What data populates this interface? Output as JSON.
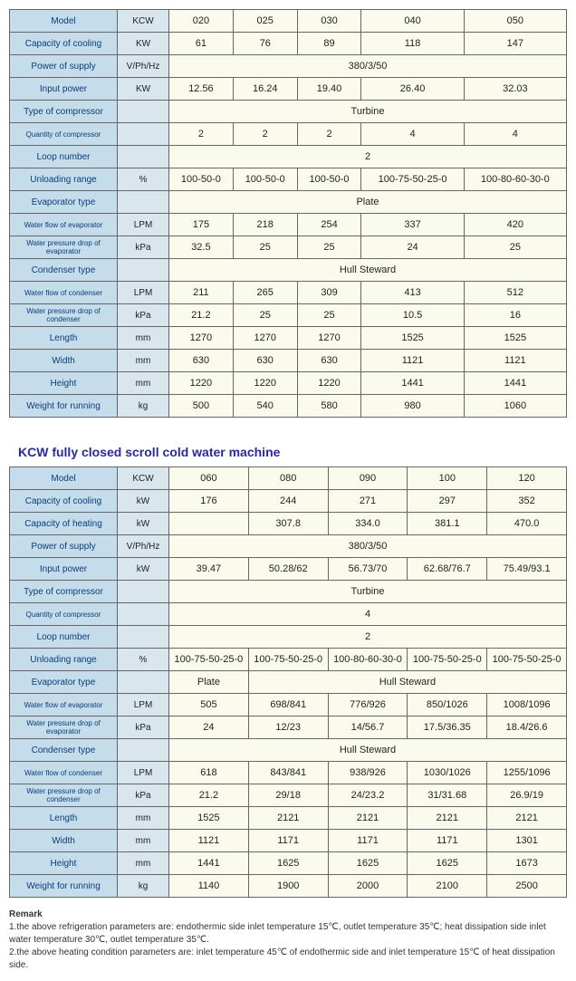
{
  "table1": {
    "rows": [
      {
        "label": "Model",
        "unit": "KCW",
        "cells": [
          "020",
          "025",
          "030",
          "040",
          "050"
        ]
      },
      {
        "label": "Capacity of cooling",
        "unit": "KW",
        "cells": [
          "61",
          "76",
          "89",
          "118",
          "147"
        ]
      },
      {
        "label": "Power of supply",
        "unit": "V/Ph/Hz",
        "span": "380/3/50"
      },
      {
        "label": "Input power",
        "unit": "KW",
        "cells": [
          "12.56",
          "16.24",
          "19.40",
          "26.40",
          "32.03"
        ]
      },
      {
        "label": "Type of compressor",
        "unit": "",
        "span": "Turbine"
      },
      {
        "label": "Quantity of compressor",
        "unit": "",
        "cells": [
          "2",
          "2",
          "2",
          "4",
          "4"
        ],
        "small": true
      },
      {
        "label": "Loop number",
        "unit": "",
        "span": "2"
      },
      {
        "label": "Unloading range",
        "unit": "%",
        "cells": [
          "100-50-0",
          "100-50-0",
          "100-50-0",
          "100-75-50-25-0",
          "100-80-60-30-0"
        ]
      },
      {
        "label": "Evaporator type",
        "unit": "",
        "span": "Plate"
      },
      {
        "label": "Water flow of evaporator",
        "unit": "LPM",
        "cells": [
          "175",
          "218",
          "254",
          "337",
          "420"
        ],
        "small": true
      },
      {
        "label": "Water pressure drop of evaporator",
        "unit": "kPa",
        "cells": [
          "32.5",
          "25",
          "25",
          "24",
          "25"
        ],
        "small": true
      },
      {
        "label": "Condenser type",
        "unit": "",
        "span": "Hull Steward"
      },
      {
        "label": "Water flow of condenser",
        "unit": "LPM",
        "cells": [
          "211",
          "265",
          "309",
          "413",
          "512"
        ],
        "small": true
      },
      {
        "label": "Water pressure drop of condenser",
        "unit": "kPa",
        "cells": [
          "21.2",
          "25",
          "25",
          "10.5",
          "16"
        ],
        "small": true
      },
      {
        "label": "Length",
        "unit": "mm",
        "cells": [
          "1270",
          "1270",
          "1270",
          "1525",
          "1525"
        ]
      },
      {
        "label": "Width",
        "unit": "mm",
        "cells": [
          "630",
          "630",
          "630",
          "1121",
          "1121"
        ]
      },
      {
        "label": "Height",
        "unit": "mm",
        "cells": [
          "1220",
          "1220",
          "1220",
          "1441",
          "1441"
        ]
      },
      {
        "label": "Weight for running",
        "unit": "kg",
        "cells": [
          "500",
          "540",
          "580",
          "980",
          "1060"
        ]
      }
    ]
  },
  "title2": "KCW fully closed scroll cold water machine",
  "table2": {
    "rows": [
      {
        "label": "Model",
        "unit": "KCW",
        "cells": [
          "060",
          "080",
          "090",
          "100",
          "120"
        ]
      },
      {
        "label": "Capacity of cooling",
        "unit": "kW",
        "cells": [
          "176",
          "244",
          "271",
          "297",
          "352"
        ]
      },
      {
        "label": "Capacity of heating",
        "unit": "kW",
        "cells": [
          "",
          "307.8",
          "334.0",
          "381.1",
          "470.0"
        ]
      },
      {
        "label": "Power of supply",
        "unit": "V/Ph/Hz",
        "span": "380/3/50"
      },
      {
        "label": "Input power",
        "unit": "kW",
        "cells": [
          "39.47",
          "50.28/62",
          "56.73/70",
          "62.68/76.7",
          "75.49/93.1"
        ]
      },
      {
        "label": "Type of compressor",
        "unit": "",
        "span": "Turbine"
      },
      {
        "label": "Quantity of compressor",
        "unit": "",
        "span": "4",
        "small": true
      },
      {
        "label": "Loop number",
        "unit": "",
        "span": "2"
      },
      {
        "label": "Unloading range",
        "unit": "%",
        "cells": [
          "100-75-50-25-0",
          "100-75-50-25-0",
          "100-80-60-30-0",
          "100-75-50-25-0",
          "100-75-50-25-0"
        ]
      },
      {
        "label": "Evaporator type",
        "unit": "",
        "split": [
          "Plate",
          "Hull Steward"
        ],
        "splitSpan": [
          1,
          4
        ]
      },
      {
        "label": "Water flow of evaporator",
        "unit": "LPM",
        "cells": [
          "505",
          "698/841",
          "776/926",
          "850/1026",
          "1008/1096"
        ],
        "small": true
      },
      {
        "label": "Water pressure drop of evaporator",
        "unit": "kPa",
        "cells": [
          "24",
          "12/23",
          "14/56.7",
          "17.5/36.35",
          "18.4/26.6"
        ],
        "small": true
      },
      {
        "label": "Condenser type",
        "unit": "",
        "span": "Hull Steward"
      },
      {
        "label": "Water flow of condenser",
        "unit": "LPM",
        "cells": [
          "618",
          "843/841",
          "938/926",
          "1030/1026",
          "1255/1096"
        ],
        "small": true
      },
      {
        "label": "Water pressure drop of condenser",
        "unit": "kPa",
        "cells": [
          "21.2",
          "29/18",
          "24/23.2",
          "31/31.68",
          "26.9/19"
        ],
        "small": true
      },
      {
        "label": "Length",
        "unit": "mm",
        "cells": [
          "1525",
          "2121",
          "2121",
          "2121",
          "2121"
        ]
      },
      {
        "label": "Width",
        "unit": "mm",
        "cells": [
          "1121",
          "1171",
          "1171",
          "1171",
          "1301"
        ]
      },
      {
        "label": "Height",
        "unit": "mm",
        "cells": [
          "1441",
          "1625",
          "1625",
          "1625",
          "1673"
        ]
      },
      {
        "label": "Weight for running",
        "unit": "kg",
        "cells": [
          "1140",
          "1900",
          "2000",
          "2100",
          "2500"
        ]
      }
    ]
  },
  "remark": {
    "title": "Remark",
    "line1": "1.the above refrigeration parameters are: endothermic side inlet temperature 15℃, outlet temperature 35℃; heat dissipation side inlet water temperature 30℃, outlet temperature 35℃.",
    "line2": "2.the above heating condition parameters are: inlet temperature 45℃ of endothermic side and inlet temperature 15℃ of heat dissipation side."
  }
}
